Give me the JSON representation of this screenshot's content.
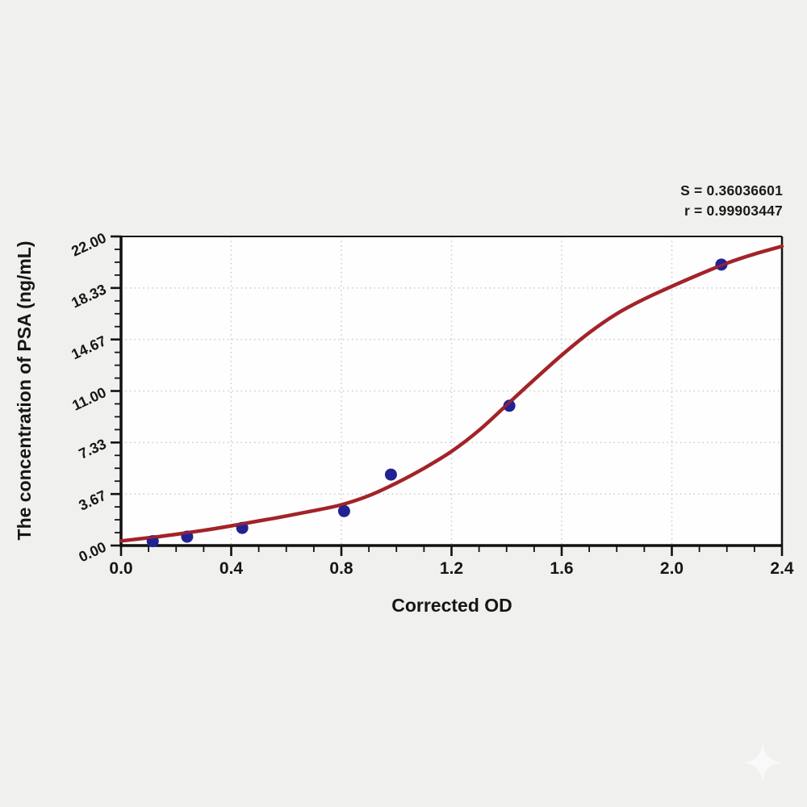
{
  "page": {
    "background_color": "#f0f0ee",
    "watermark_icon": "sparkle"
  },
  "chart_data": {
    "type": "scatter",
    "xlabel": "Corrected OD",
    "ylabel": "The concentration of PSA (ng/mL)",
    "xlim": [
      0.0,
      2.4
    ],
    "ylim": [
      0.0,
      22.0
    ],
    "x_ticks": {
      "values": [
        0.0,
        0.4,
        0.8,
        1.2,
        1.6,
        2.0,
        2.4
      ],
      "labels": [
        "0.0",
        "0.4",
        "0.8",
        "1.2",
        "1.6",
        "2.0",
        "2.4"
      ],
      "minor_step": 0.1
    },
    "y_ticks": {
      "values": [
        0.0,
        3.667,
        7.333,
        11.0,
        14.667,
        18.333,
        22.0
      ],
      "labels": [
        "0.00",
        "3.67",
        "7.33",
        "11.00",
        "14.67",
        "18.33",
        "22.00"
      ],
      "minor_per_major": 3
    },
    "grid": {
      "show": true,
      "style": "dotted",
      "on": "major"
    },
    "legend": {
      "show": false
    },
    "series": [
      {
        "name": "standard-points",
        "type": "scatter",
        "points": [
          [
            0.115,
            0.31
          ],
          [
            0.24,
            0.63
          ],
          [
            0.44,
            1.25
          ],
          [
            0.81,
            2.45
          ],
          [
            0.98,
            5.05
          ],
          [
            1.41,
            9.95
          ],
          [
            2.18,
            20.0
          ]
        ]
      },
      {
        "name": "fitted-curve",
        "type": "line",
        "points": [
          [
            0.0,
            0.33
          ],
          [
            0.1,
            0.55
          ],
          [
            0.2,
            0.8
          ],
          [
            0.3,
            1.08
          ],
          [
            0.4,
            1.4
          ],
          [
            0.5,
            1.75
          ],
          [
            0.6,
            2.1
          ],
          [
            0.7,
            2.48
          ],
          [
            0.8,
            2.9
          ],
          [
            0.9,
            3.55
          ],
          [
            1.0,
            4.45
          ],
          [
            1.1,
            5.5
          ],
          [
            1.2,
            6.7
          ],
          [
            1.3,
            8.2
          ],
          [
            1.4,
            10.0
          ],
          [
            1.5,
            11.8
          ],
          [
            1.6,
            13.55
          ],
          [
            1.7,
            15.15
          ],
          [
            1.8,
            16.5
          ],
          [
            1.9,
            17.55
          ],
          [
            2.0,
            18.45
          ],
          [
            2.1,
            19.3
          ],
          [
            2.2,
            20.1
          ],
          [
            2.3,
            20.75
          ],
          [
            2.4,
            21.3
          ]
        ]
      }
    ],
    "annotations": [
      {
        "text": "S = 0.36036601"
      },
      {
        "text": "r = 0.99903447"
      }
    ],
    "colors": {
      "curve": "#a32428",
      "points": "#232293",
      "axis": "#111111",
      "grid": "#c9c9c9",
      "plot_bg": "#fefefe",
      "text": "#161616"
    }
  }
}
